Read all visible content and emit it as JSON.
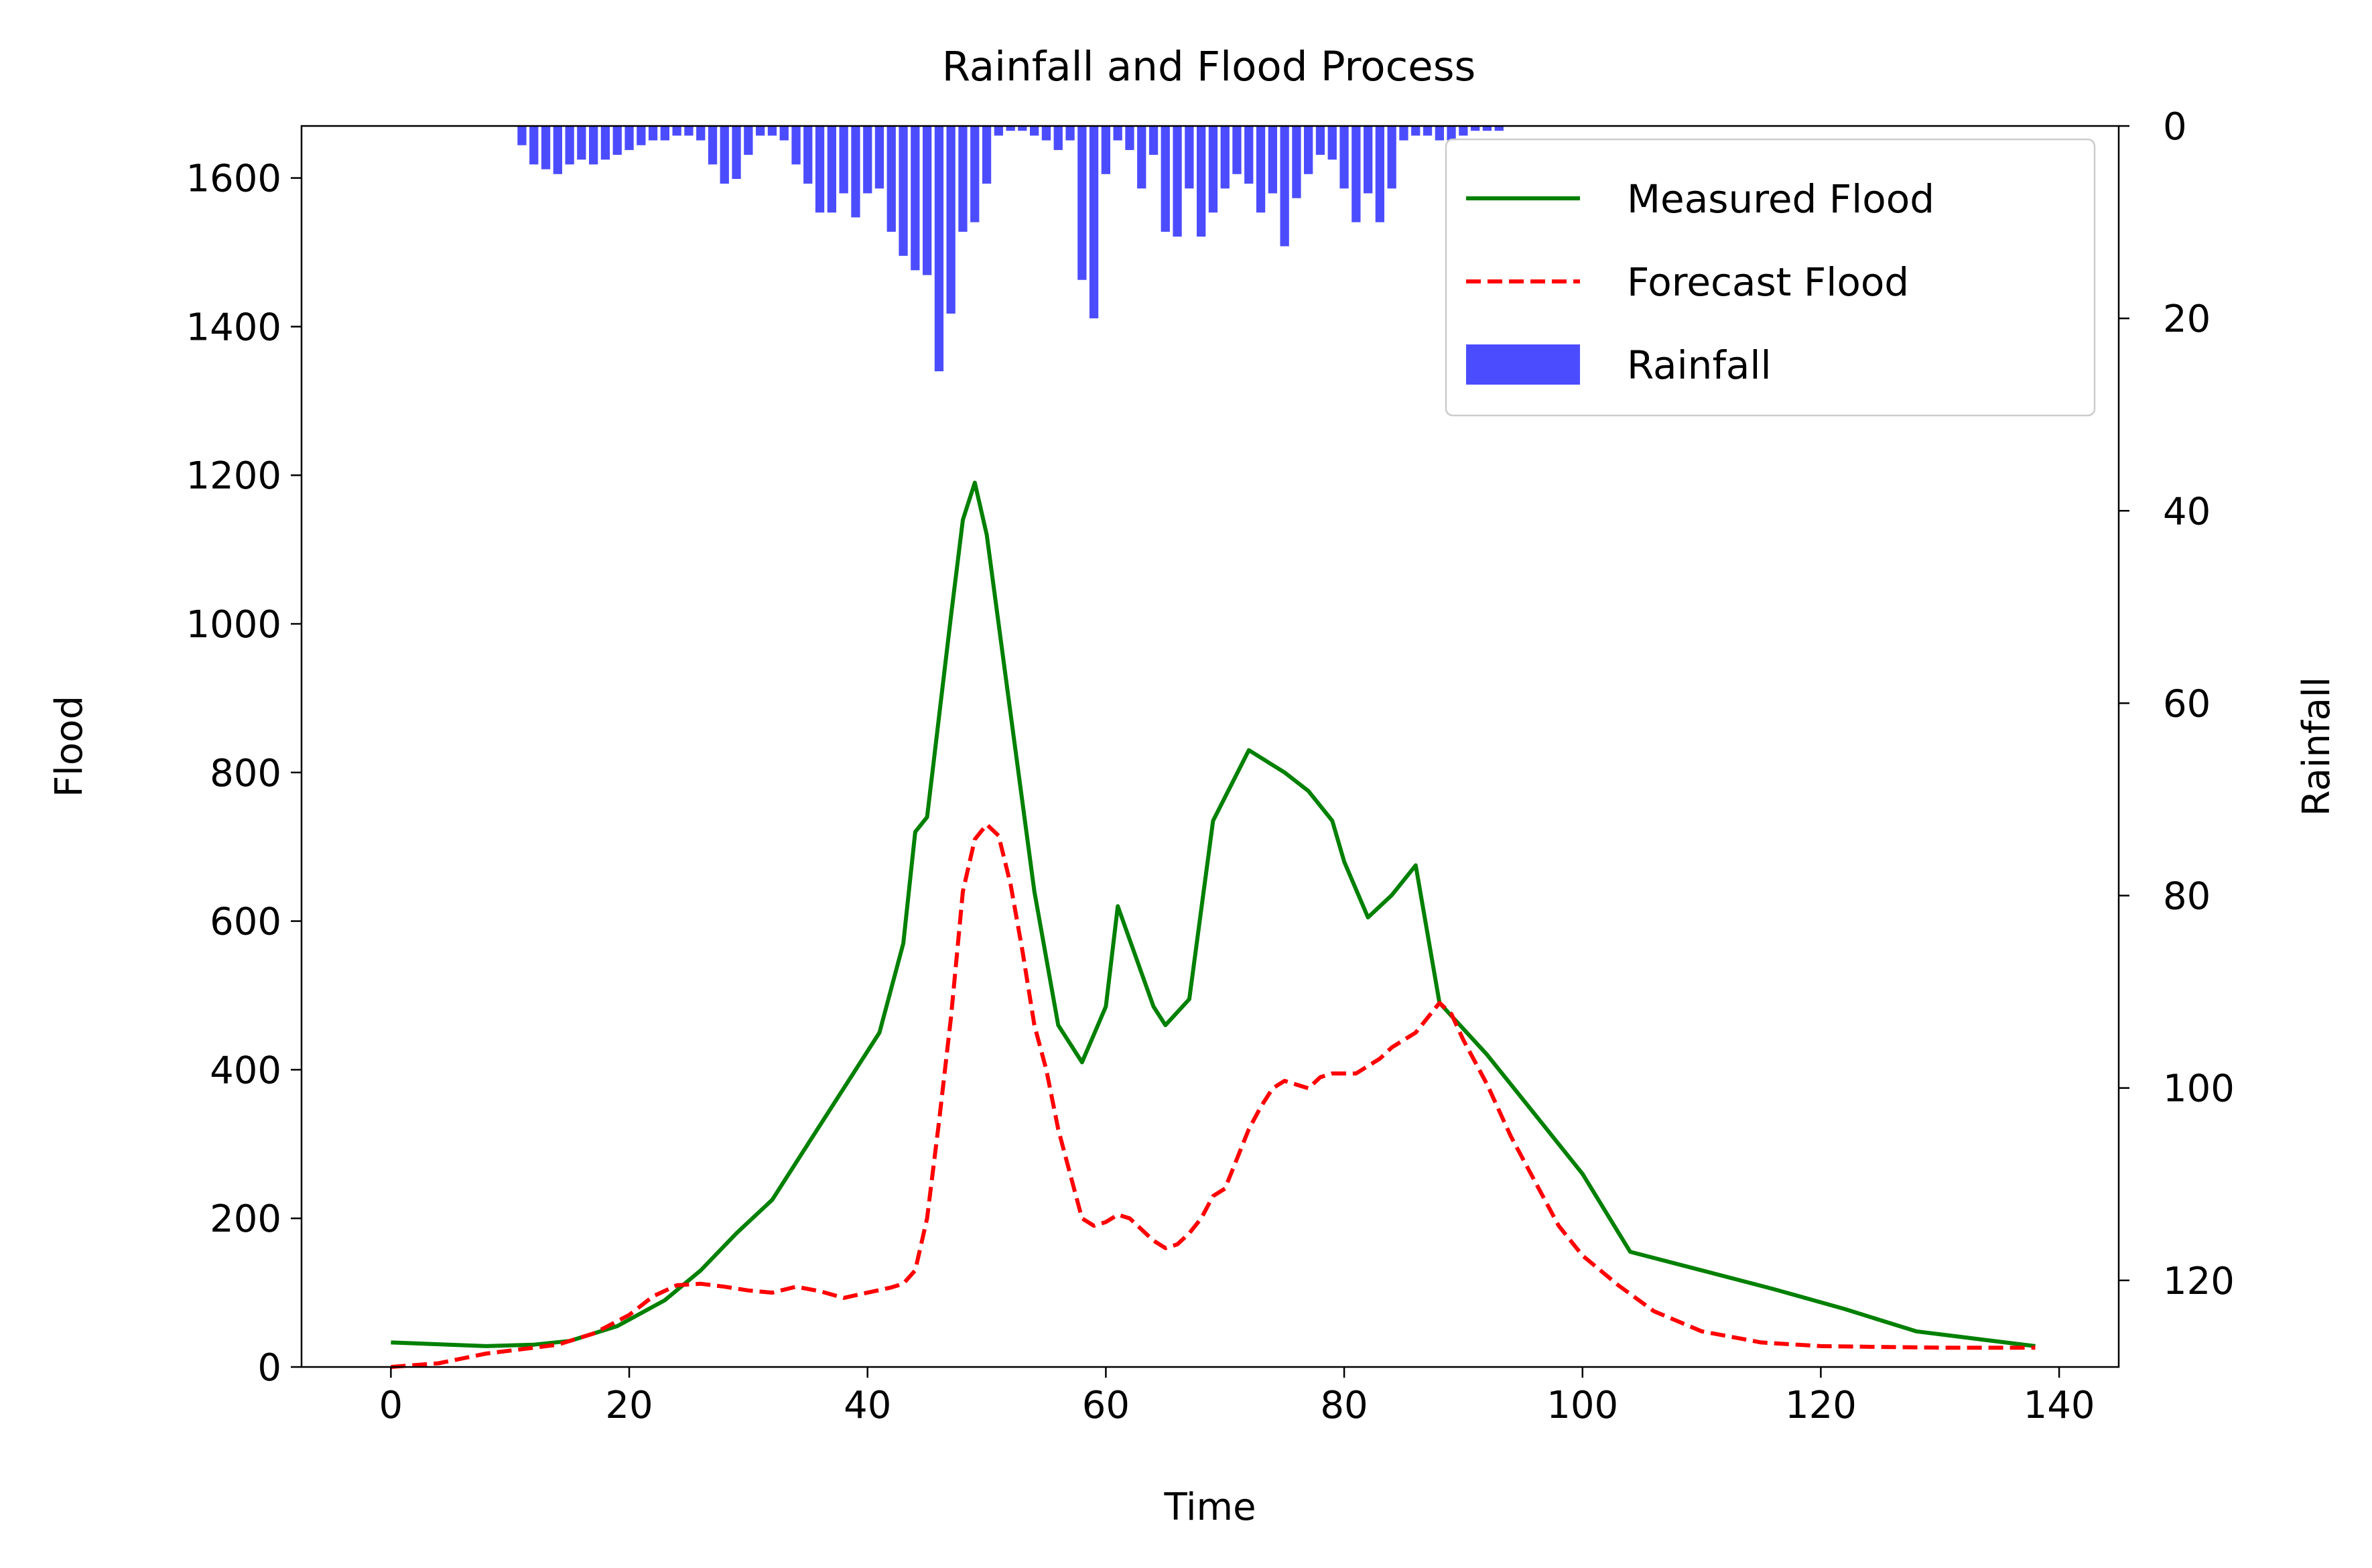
{
  "chart_data": {
    "type": "line",
    "title": "Rainfall and Flood Process",
    "xlabel": "Time",
    "ylabel": "Flood",
    "y2label": "Rainfall",
    "xlim": [
      -7.5,
      145
    ],
    "ylim": [
      0,
      1670
    ],
    "y2lim": [
      0,
      129
    ],
    "y2_inverted": true,
    "xticks": [
      "0",
      "20",
      "40",
      "60",
      "80",
      "100",
      "120",
      "140"
    ],
    "yticks": [
      "0",
      "200",
      "400",
      "600",
      "800",
      "1000",
      "1200",
      "1400",
      "1600"
    ],
    "y2ticks": [
      "0",
      "20",
      "40",
      "60",
      "80",
      "100",
      "120"
    ],
    "legend_position": "top-right",
    "grid": false,
    "series": [
      {
        "name": "Measured Flood",
        "color": "#008000",
        "style": "solid",
        "x": [
          0,
          8,
          12,
          15,
          19,
          23,
          26,
          29,
          32,
          35,
          38,
          41,
          43,
          44,
          45,
          47,
          48,
          49,
          50,
          52,
          54,
          56,
          58,
          60,
          61,
          63,
          64,
          65,
          67,
          69,
          72,
          75,
          77,
          79,
          80,
          82,
          84,
          86,
          88,
          92,
          96,
          100,
          104,
          110,
          116,
          122,
          128,
          134,
          138
        ],
        "y": [
          33,
          28,
          30,
          35,
          55,
          90,
          130,
          180,
          225,
          300,
          375,
          450,
          570,
          720,
          740,
          1010,
          1140,
          1190,
          1120,
          880,
          640,
          460,
          410,
          485,
          620,
          530,
          485,
          460,
          495,
          735,
          830,
          800,
          775,
          735,
          680,
          605,
          635,
          675,
          490,
          420,
          340,
          260,
          155,
          130,
          105,
          78,
          48,
          36,
          28
        ]
      },
      {
        "name": "Forecast Flood",
        "color": "#ff0000",
        "style": "dashed",
        "x": [
          0,
          4,
          8,
          11,
          14,
          17,
          20,
          22,
          24,
          26,
          28,
          30,
          32,
          34,
          36,
          38,
          40,
          42,
          43,
          44,
          45,
          46,
          47,
          48,
          49,
          50,
          51,
          52,
          53,
          54,
          55,
          56,
          57,
          58,
          59,
          60,
          61,
          62,
          63,
          64,
          65,
          66,
          67,
          68,
          69,
          70,
          71,
          72,
          73,
          74,
          75,
          76,
          77,
          78,
          79,
          80,
          81,
          82,
          83,
          84,
          85,
          86,
          87,
          88,
          89,
          90,
          92,
          94,
          96,
          98,
          100,
          103,
          106,
          110,
          115,
          120,
          125,
          130,
          138
        ],
        "y": [
          0,
          5,
          18,
          24,
          30,
          45,
          70,
          95,
          110,
          112,
          108,
          103,
          100,
          108,
          102,
          93,
          100,
          107,
          112,
          130,
          200,
          330,
          470,
          640,
          710,
          730,
          715,
          650,
          560,
          460,
          400,
          320,
          260,
          200,
          190,
          195,
          205,
          200,
          185,
          170,
          160,
          165,
          180,
          200,
          230,
          240,
          280,
          320,
          350,
          375,
          385,
          380,
          375,
          390,
          395,
          395,
          395,
          405,
          415,
          430,
          440,
          450,
          470,
          490,
          475,
          440,
          380,
          310,
          250,
          190,
          150,
          110,
          75,
          48,
          33,
          28,
          27,
          26,
          26
        ]
      }
    ],
    "rainfall": {
      "name": "Rainfall",
      "color": "#0000ff",
      "x_start": 11,
      "x_end": 93,
      "values": [
        2,
        4,
        4.5,
        5,
        4,
        3.5,
        4,
        3.5,
        3,
        2.5,
        2,
        1.5,
        1.5,
        1,
        1,
        1.5,
        4,
        6,
        5.5,
        3,
        1,
        1,
        1.5,
        4,
        6,
        9,
        9,
        7,
        9.5,
        7,
        6.5,
        11,
        13.5,
        15,
        15.5,
        25.5,
        19.5,
        11,
        10,
        6,
        1,
        0.5,
        0.5,
        1,
        1.5,
        2.5,
        1.5,
        16,
        20,
        5,
        1.5,
        2.5,
        6.5,
        3,
        11,
        11.5,
        6.5,
        11.5,
        9,
        6.5,
        5,
        6,
        9,
        7,
        12.5,
        7.5,
        5,
        3,
        3.5,
        6.5,
        10,
        7,
        10,
        6.5,
        1.5,
        1,
        1,
        1.5,
        1.5,
        1,
        0.5,
        0.5,
        0.5
      ]
    }
  }
}
